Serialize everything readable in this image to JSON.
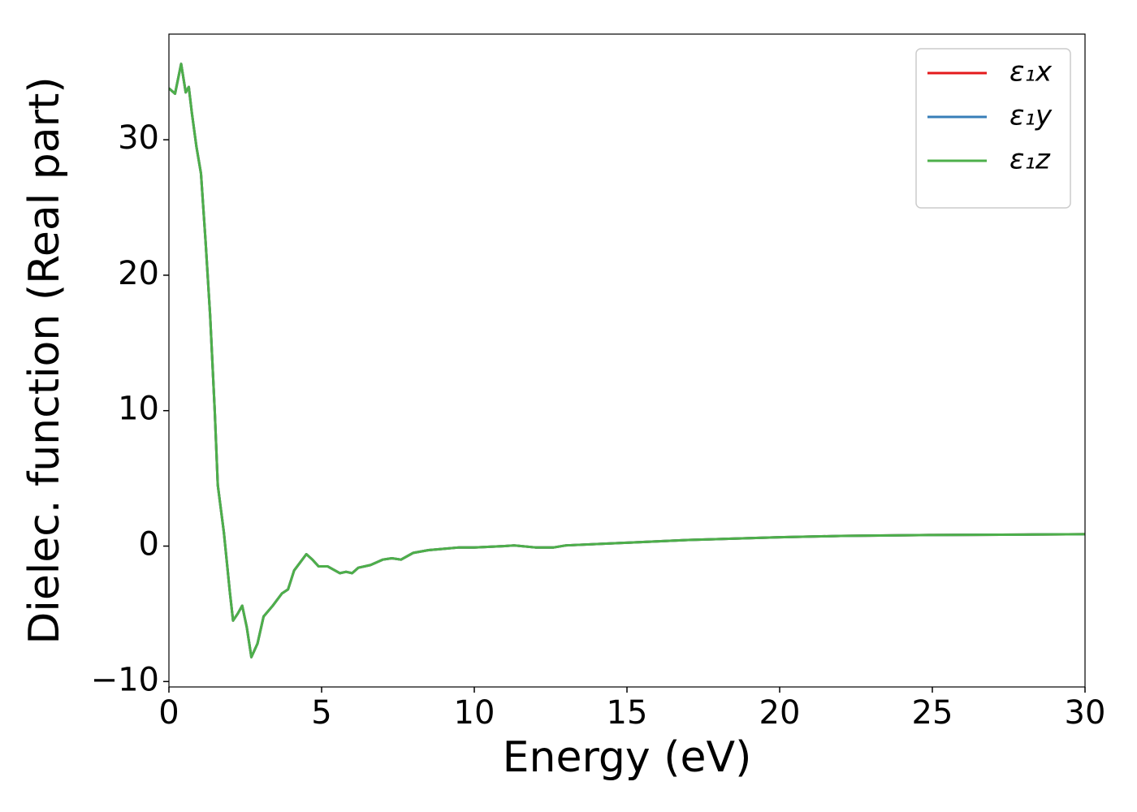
{
  "chart_data": {
    "type": "line",
    "xlabel": "Energy (eV)",
    "ylabel": "Dielec. function (Real part)",
    "x": [
      0,
      0.2,
      0.4,
      0.55,
      0.65,
      0.75,
      0.9,
      1.05,
      1.2,
      1.35,
      1.5,
      1.6,
      1.8,
      2.0,
      2.1,
      2.25,
      2.4,
      2.55,
      2.7,
      2.9,
      3.1,
      3.4,
      3.7,
      3.9,
      4.1,
      4.3,
      4.5,
      4.7,
      4.9,
      5.2,
      5.6,
      5.8,
      6.0,
      6.2,
      6.6,
      7.0,
      7.3,
      7.6,
      8.0,
      8.5,
      9.0,
      9.5,
      10,
      11,
      11.3,
      12,
      12.6,
      13,
      15,
      17,
      20,
      22,
      25,
      28,
      30
    ],
    "series": [
      {
        "name": "ε₁x",
        "color": "#e41a1c",
        "values": [
          33.8,
          33.4,
          35.6,
          33.5,
          33.9,
          32,
          29.5,
          27.5,
          22.5,
          17,
          10,
          4.5,
          1,
          -3.5,
          -5.5,
          -5,
          -4.4,
          -6,
          -8.2,
          -7.2,
          -5.2,
          -4.4,
          -3.5,
          -3.2,
          -1.8,
          -1.2,
          -0.6,
          -1.0,
          -1.5,
          -1.5,
          -2.0,
          -1.9,
          -2.0,
          -1.6,
          -1.4,
          -1.0,
          -0.9,
          -1.0,
          -0.5,
          -0.3,
          -0.2,
          -0.1,
          -0.1,
          0,
          0.05,
          -0.1,
          -0.1,
          0.05,
          0.25,
          0.45,
          0.65,
          0.75,
          0.82,
          0.85,
          0.88
        ]
      },
      {
        "name": "ε₁y",
        "color": "#377eb8",
        "values": [
          33.8,
          33.4,
          35.6,
          33.5,
          33.9,
          32,
          29.5,
          27.5,
          22.5,
          17,
          10,
          4.5,
          1,
          -3.5,
          -5.5,
          -5,
          -4.4,
          -6,
          -8.2,
          -7.2,
          -5.2,
          -4.4,
          -3.5,
          -3.2,
          -1.8,
          -1.2,
          -0.6,
          -1.0,
          -1.5,
          -1.5,
          -2.0,
          -1.9,
          -2.0,
          -1.6,
          -1.4,
          -1.0,
          -0.9,
          -1.0,
          -0.5,
          -0.3,
          -0.2,
          -0.1,
          -0.1,
          0,
          0.05,
          -0.1,
          -0.1,
          0.05,
          0.25,
          0.45,
          0.65,
          0.75,
          0.82,
          0.85,
          0.88
        ]
      },
      {
        "name": "ε₁z",
        "color": "#4daf4a",
        "values": [
          33.8,
          33.4,
          35.6,
          33.5,
          33.9,
          32,
          29.5,
          27.5,
          22.5,
          17,
          10,
          4.5,
          1,
          -3.5,
          -5.5,
          -5,
          -4.4,
          -6,
          -8.2,
          -7.2,
          -5.2,
          -4.4,
          -3.5,
          -3.2,
          -1.8,
          -1.2,
          -0.6,
          -1.0,
          -1.5,
          -1.5,
          -2.0,
          -1.9,
          -2.0,
          -1.6,
          -1.4,
          -1.0,
          -0.9,
          -1.0,
          -0.5,
          -0.3,
          -0.2,
          -0.1,
          -0.1,
          0,
          0.05,
          -0.1,
          -0.1,
          0.05,
          0.25,
          0.45,
          0.65,
          0.75,
          0.82,
          0.85,
          0.88
        ]
      }
    ],
    "xlim": [
      0,
      30
    ],
    "xticks": [
      0,
      5,
      10,
      15,
      20,
      25,
      30
    ],
    "ylim": [
      -10.4,
      37.8
    ],
    "yticks": [
      {
        "value": -10,
        "label": "−10"
      },
      0,
      10,
      20,
      30
    ],
    "legend": "upper right"
  }
}
